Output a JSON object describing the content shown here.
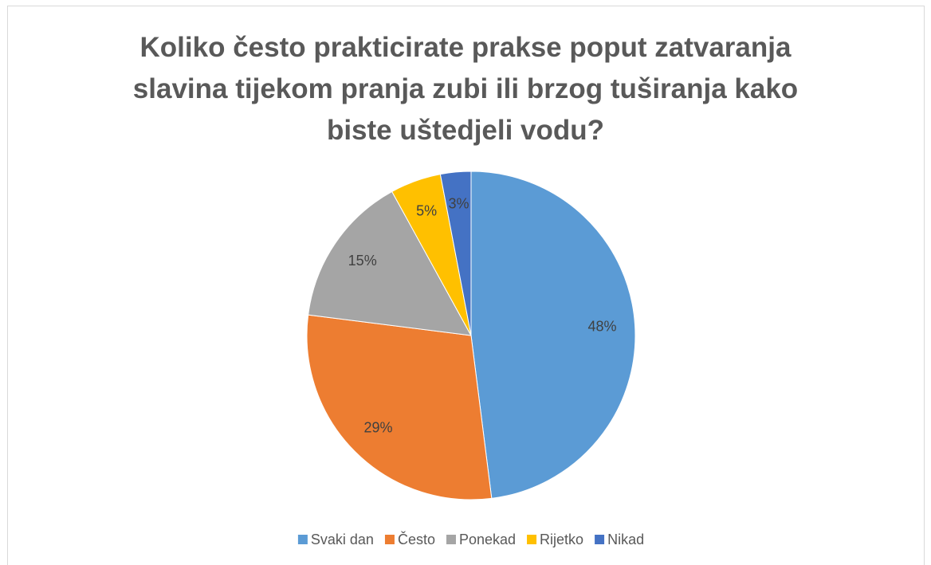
{
  "chart_data": {
    "type": "pie",
    "title": "Koliko često prakticirate prakse poput zatvaranja slavina tijekom pranja zubi ili brzog tuširanja kako biste uštedjeli vodu?",
    "categories": [
      "Svaki dan",
      "Često",
      "Ponekad",
      "Rijetko",
      "Nikad"
    ],
    "values": [
      48,
      29,
      15,
      5,
      3
    ],
    "value_labels": [
      "48%",
      "29%",
      "15%",
      "5%",
      "3%"
    ],
    "colors": [
      "#5b9bd5",
      "#ed7d31",
      "#a5a5a5",
      "#ffc000",
      "#4472c4"
    ],
    "legend": "bottom"
  }
}
